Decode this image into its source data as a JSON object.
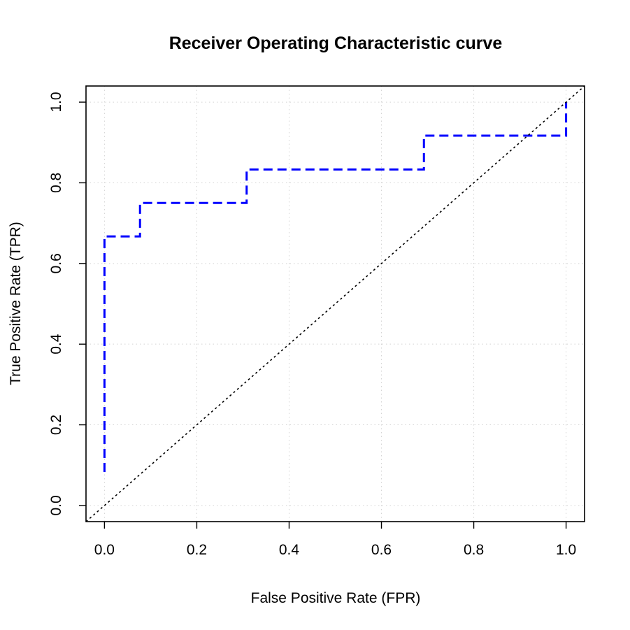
{
  "chart_data": {
    "type": "line",
    "title": "Receiver Operating Characteristic curve",
    "xlabel": "False Positive Rate (FPR)",
    "ylabel": "True Positive Rate (TPR)",
    "xlim": [
      -0.04,
      1.04
    ],
    "ylim": [
      -0.04,
      1.04
    ],
    "x_ticks": [
      0.0,
      0.2,
      0.4,
      0.6,
      0.8,
      1.0
    ],
    "y_ticks": [
      0.0,
      0.2,
      0.4,
      0.6,
      0.8,
      1.0
    ],
    "x_tick_labels": [
      "0.0",
      "0.2",
      "0.4",
      "0.6",
      "0.8",
      "1.0"
    ],
    "y_tick_labels": [
      "0.0",
      "0.2",
      "0.4",
      "0.6",
      "0.8",
      "1.0"
    ],
    "grid": true,
    "series": [
      {
        "style": "dashed",
        "color": "#0000ff",
        "x": [
          0.0,
          0.0,
          0.077,
          0.077,
          0.308,
          0.308,
          0.692,
          0.692,
          1.0,
          1.0
        ],
        "y": [
          0.083,
          0.667,
          0.667,
          0.75,
          0.75,
          0.833,
          0.833,
          0.917,
          0.917,
          1.0
        ]
      },
      {
        "style": "dotted",
        "color": "#000000",
        "x": [
          -0.04,
          1.04
        ],
        "y": [
          -0.04,
          1.04
        ]
      }
    ]
  }
}
